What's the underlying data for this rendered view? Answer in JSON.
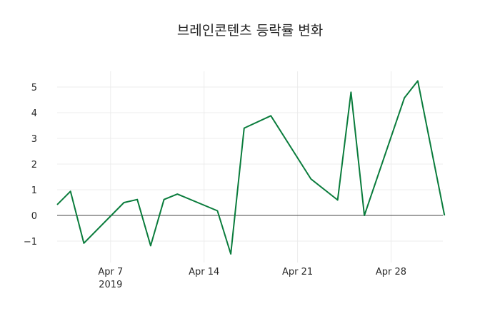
{
  "chart_data": {
    "type": "line",
    "title": "브레인콘텐츠 등락률 변화",
    "xlabel": "",
    "ylabel": "",
    "x": [
      "2019-04-03",
      "2019-04-04",
      "2019-04-05",
      "2019-04-08",
      "2019-04-09",
      "2019-04-10",
      "2019-04-11",
      "2019-04-12",
      "2019-04-15",
      "2019-04-16",
      "2019-04-17",
      "2019-04-19",
      "2019-04-22",
      "2019-04-24",
      "2019-04-25",
      "2019-04-26",
      "2019-04-29",
      "2019-04-30",
      "2019-05-02"
    ],
    "series": [
      {
        "name": "등락률",
        "color": "#0a7c3c",
        "values": [
          0.42,
          0.94,
          -1.08,
          0.5,
          0.62,
          -1.18,
          0.62,
          0.83,
          0.18,
          -1.5,
          3.4,
          3.88,
          1.42,
          0.6,
          4.8,
          0.0,
          4.58,
          5.24,
          0.0
        ]
      }
    ],
    "x_ticks": [
      "Apr 7\n2019",
      "Apr 14",
      "Apr 21",
      "Apr 28"
    ],
    "y_ticks": [
      -1,
      0,
      1,
      2,
      3,
      4,
      5
    ],
    "ylim": [
      -1.8,
      5.5
    ],
    "grid": true,
    "legend": false
  },
  "labels": {
    "title": "브레인콘텐츠 등락률 변화",
    "x_ticks": [
      "Apr 7",
      "Apr 14",
      "Apr 21",
      "Apr 28"
    ],
    "x_year": "2019",
    "y_ticks": [
      "−1",
      "0",
      "1",
      "2",
      "3",
      "4",
      "5"
    ]
  }
}
